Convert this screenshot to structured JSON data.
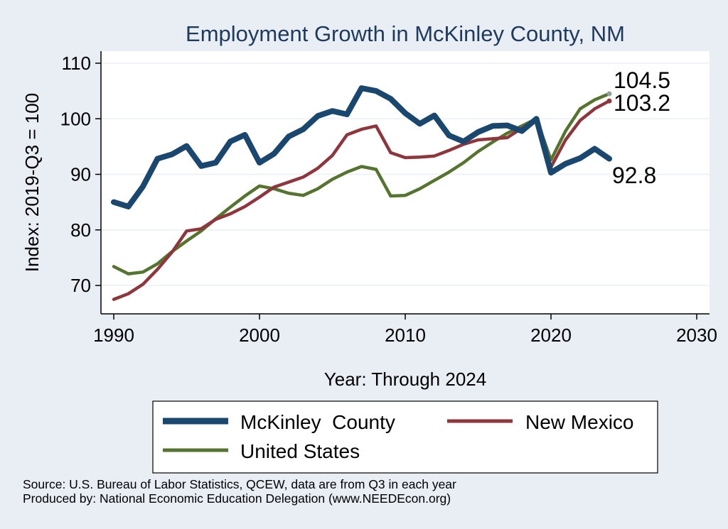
{
  "chart_data": {
    "type": "line",
    "title": "Employment Growth in McKinley County, NM",
    "xlabel": "Year: Through 2024",
    "ylabel": "Index: 2019-Q3 = 100",
    "xlim": [
      1990,
      2030
    ],
    "ylim": [
      65,
      111
    ],
    "xticks": [
      1990,
      2000,
      2010,
      2020,
      2030
    ],
    "yticks": [
      70,
      80,
      90,
      100,
      110
    ],
    "grid": true,
    "legend_position": "bottom",
    "x": [
      1990,
      1991,
      1992,
      1993,
      1994,
      1995,
      1996,
      1997,
      1998,
      1999,
      2000,
      2001,
      2002,
      2003,
      2004,
      2005,
      2006,
      2007,
      2008,
      2009,
      2010,
      2011,
      2012,
      2013,
      2014,
      2015,
      2016,
      2017,
      2018,
      2019,
      2020,
      2021,
      2022,
      2023,
      2024
    ],
    "series": [
      {
        "name": "McKinley  County",
        "color": "#1a476f",
        "values": [
          85.0,
          84.2,
          87.8,
          92.8,
          93.6,
          95.1,
          91.5,
          92.1,
          95.9,
          97.1,
          92.1,
          93.7,
          96.8,
          98.1,
          100.5,
          101.4,
          100.8,
          105.5,
          105.0,
          103.6,
          101.0,
          99.1,
          100.6,
          97.0,
          95.9,
          97.6,
          98.7,
          98.8,
          97.8,
          100.0,
          90.3,
          91.9,
          92.9,
          94.6,
          92.8
        ]
      },
      {
        "name": "New Mexico",
        "color": "#90353b",
        "values": [
          67.5,
          68.5,
          70.2,
          72.9,
          76.0,
          79.8,
          80.2,
          81.9,
          82.9,
          84.2,
          85.9,
          87.7,
          88.6,
          89.5,
          91.1,
          93.4,
          97.1,
          98.1,
          98.7,
          93.9,
          93.0,
          93.1,
          93.3,
          94.3,
          95.4,
          96.2,
          96.4,
          96.6,
          98.3,
          100.0,
          91.3,
          96.2,
          99.7,
          101.8,
          103.2
        ]
      },
      {
        "name": "United States",
        "color": "#55752f",
        "values": [
          73.4,
          72.1,
          72.4,
          73.9,
          76.1,
          78.0,
          79.8,
          82.0,
          84.1,
          86.1,
          87.9,
          87.4,
          86.6,
          86.2,
          87.4,
          89.1,
          90.4,
          91.4,
          90.9,
          86.1,
          86.2,
          87.4,
          88.9,
          90.4,
          92.1,
          94.1,
          95.8,
          97.4,
          98.7,
          100.0,
          92.6,
          97.8,
          101.8,
          103.4,
          104.5
        ]
      }
    ],
    "end_labels": [
      "92.8",
      "103.2",
      "104.5"
    ]
  },
  "source_note": "Source: U.S. Bureau of Labor Statistics, QCEW, data are from Q3 in each year",
  "produced_by_note": "Produced by: National Economic Education Delegation (www.NEEDEcon.org)"
}
